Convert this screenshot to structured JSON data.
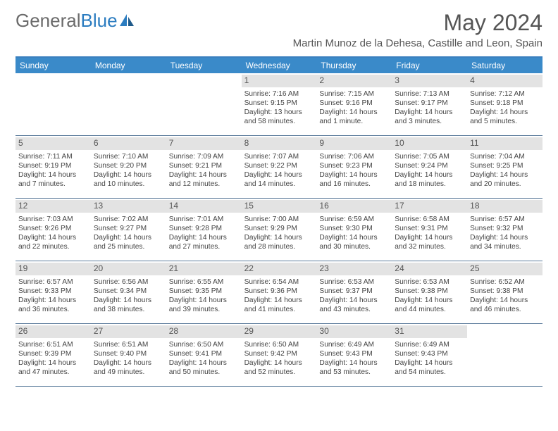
{
  "logo": {
    "text1": "General",
    "text2": "Blue"
  },
  "header": {
    "month_title": "May 2024",
    "location": "Martin Munoz de la Dehesa, Castille and Leon, Spain"
  },
  "colors": {
    "header_bar": "#3a8ac9",
    "header_border": "#3a7fbf",
    "row_border": "#5a7a9a",
    "daynum_bg": "#e3e3e3",
    "text": "#555555",
    "logo_gray": "#6b6b6b",
    "logo_blue": "#2b7cc0"
  },
  "weekdays": [
    "Sunday",
    "Monday",
    "Tuesday",
    "Wednesday",
    "Thursday",
    "Friday",
    "Saturday"
  ],
  "weeks": [
    [
      {
        "day": "",
        "sunrise": "",
        "sunset": "",
        "daylight": ""
      },
      {
        "day": "",
        "sunrise": "",
        "sunset": "",
        "daylight": ""
      },
      {
        "day": "",
        "sunrise": "",
        "sunset": "",
        "daylight": ""
      },
      {
        "day": "1",
        "sunrise": "Sunrise: 7:16 AM",
        "sunset": "Sunset: 9:15 PM",
        "daylight": "Daylight: 13 hours and 58 minutes."
      },
      {
        "day": "2",
        "sunrise": "Sunrise: 7:15 AM",
        "sunset": "Sunset: 9:16 PM",
        "daylight": "Daylight: 14 hours and 1 minute."
      },
      {
        "day": "3",
        "sunrise": "Sunrise: 7:13 AM",
        "sunset": "Sunset: 9:17 PM",
        "daylight": "Daylight: 14 hours and 3 minutes."
      },
      {
        "day": "4",
        "sunrise": "Sunrise: 7:12 AM",
        "sunset": "Sunset: 9:18 PM",
        "daylight": "Daylight: 14 hours and 5 minutes."
      }
    ],
    [
      {
        "day": "5",
        "sunrise": "Sunrise: 7:11 AM",
        "sunset": "Sunset: 9:19 PM",
        "daylight": "Daylight: 14 hours and 7 minutes."
      },
      {
        "day": "6",
        "sunrise": "Sunrise: 7:10 AM",
        "sunset": "Sunset: 9:20 PM",
        "daylight": "Daylight: 14 hours and 10 minutes."
      },
      {
        "day": "7",
        "sunrise": "Sunrise: 7:09 AM",
        "sunset": "Sunset: 9:21 PM",
        "daylight": "Daylight: 14 hours and 12 minutes."
      },
      {
        "day": "8",
        "sunrise": "Sunrise: 7:07 AM",
        "sunset": "Sunset: 9:22 PM",
        "daylight": "Daylight: 14 hours and 14 minutes."
      },
      {
        "day": "9",
        "sunrise": "Sunrise: 7:06 AM",
        "sunset": "Sunset: 9:23 PM",
        "daylight": "Daylight: 14 hours and 16 minutes."
      },
      {
        "day": "10",
        "sunrise": "Sunrise: 7:05 AM",
        "sunset": "Sunset: 9:24 PM",
        "daylight": "Daylight: 14 hours and 18 minutes."
      },
      {
        "day": "11",
        "sunrise": "Sunrise: 7:04 AM",
        "sunset": "Sunset: 9:25 PM",
        "daylight": "Daylight: 14 hours and 20 minutes."
      }
    ],
    [
      {
        "day": "12",
        "sunrise": "Sunrise: 7:03 AM",
        "sunset": "Sunset: 9:26 PM",
        "daylight": "Daylight: 14 hours and 22 minutes."
      },
      {
        "day": "13",
        "sunrise": "Sunrise: 7:02 AM",
        "sunset": "Sunset: 9:27 PM",
        "daylight": "Daylight: 14 hours and 25 minutes."
      },
      {
        "day": "14",
        "sunrise": "Sunrise: 7:01 AM",
        "sunset": "Sunset: 9:28 PM",
        "daylight": "Daylight: 14 hours and 27 minutes."
      },
      {
        "day": "15",
        "sunrise": "Sunrise: 7:00 AM",
        "sunset": "Sunset: 9:29 PM",
        "daylight": "Daylight: 14 hours and 28 minutes."
      },
      {
        "day": "16",
        "sunrise": "Sunrise: 6:59 AM",
        "sunset": "Sunset: 9:30 PM",
        "daylight": "Daylight: 14 hours and 30 minutes."
      },
      {
        "day": "17",
        "sunrise": "Sunrise: 6:58 AM",
        "sunset": "Sunset: 9:31 PM",
        "daylight": "Daylight: 14 hours and 32 minutes."
      },
      {
        "day": "18",
        "sunrise": "Sunrise: 6:57 AM",
        "sunset": "Sunset: 9:32 PM",
        "daylight": "Daylight: 14 hours and 34 minutes."
      }
    ],
    [
      {
        "day": "19",
        "sunrise": "Sunrise: 6:57 AM",
        "sunset": "Sunset: 9:33 PM",
        "daylight": "Daylight: 14 hours and 36 minutes."
      },
      {
        "day": "20",
        "sunrise": "Sunrise: 6:56 AM",
        "sunset": "Sunset: 9:34 PM",
        "daylight": "Daylight: 14 hours and 38 minutes."
      },
      {
        "day": "21",
        "sunrise": "Sunrise: 6:55 AM",
        "sunset": "Sunset: 9:35 PM",
        "daylight": "Daylight: 14 hours and 39 minutes."
      },
      {
        "day": "22",
        "sunrise": "Sunrise: 6:54 AM",
        "sunset": "Sunset: 9:36 PM",
        "daylight": "Daylight: 14 hours and 41 minutes."
      },
      {
        "day": "23",
        "sunrise": "Sunrise: 6:53 AM",
        "sunset": "Sunset: 9:37 PM",
        "daylight": "Daylight: 14 hours and 43 minutes."
      },
      {
        "day": "24",
        "sunrise": "Sunrise: 6:53 AM",
        "sunset": "Sunset: 9:38 PM",
        "daylight": "Daylight: 14 hours and 44 minutes."
      },
      {
        "day": "25",
        "sunrise": "Sunrise: 6:52 AM",
        "sunset": "Sunset: 9:38 PM",
        "daylight": "Daylight: 14 hours and 46 minutes."
      }
    ],
    [
      {
        "day": "26",
        "sunrise": "Sunrise: 6:51 AM",
        "sunset": "Sunset: 9:39 PM",
        "daylight": "Daylight: 14 hours and 47 minutes."
      },
      {
        "day": "27",
        "sunrise": "Sunrise: 6:51 AM",
        "sunset": "Sunset: 9:40 PM",
        "daylight": "Daylight: 14 hours and 49 minutes."
      },
      {
        "day": "28",
        "sunrise": "Sunrise: 6:50 AM",
        "sunset": "Sunset: 9:41 PM",
        "daylight": "Daylight: 14 hours and 50 minutes."
      },
      {
        "day": "29",
        "sunrise": "Sunrise: 6:50 AM",
        "sunset": "Sunset: 9:42 PM",
        "daylight": "Daylight: 14 hours and 52 minutes."
      },
      {
        "day": "30",
        "sunrise": "Sunrise: 6:49 AM",
        "sunset": "Sunset: 9:43 PM",
        "daylight": "Daylight: 14 hours and 53 minutes."
      },
      {
        "day": "31",
        "sunrise": "Sunrise: 6:49 AM",
        "sunset": "Sunset: 9:43 PM",
        "daylight": "Daylight: 14 hours and 54 minutes."
      },
      {
        "day": "",
        "sunrise": "",
        "sunset": "",
        "daylight": ""
      }
    ]
  ]
}
